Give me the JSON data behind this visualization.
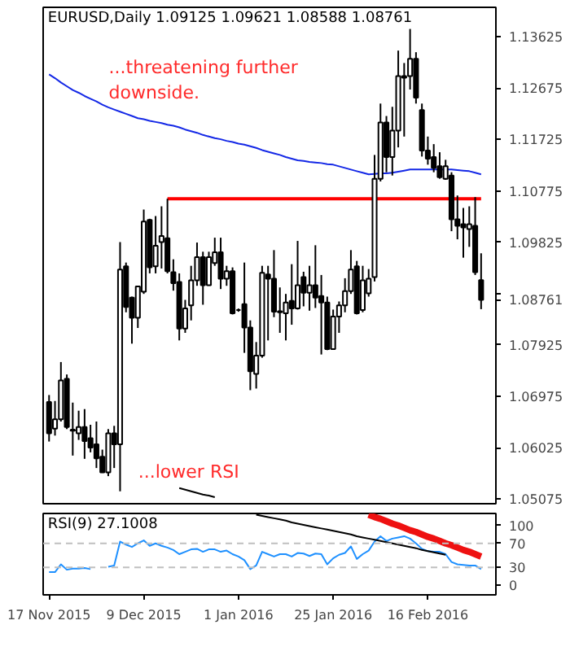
{
  "chart_data": [
    {
      "type": "candlestick",
      "title": "EURUSD,Daily 1.09125 1.09621 1.08588 1.08761",
      "ohlc": [
        [
          1.0687,
          1.07,
          1.0614,
          1.0629
        ],
        [
          1.0638,
          1.0689,
          1.0625,
          1.0655
        ],
        [
          1.0655,
          1.0761,
          1.0651,
          1.0727
        ],
        [
          1.073,
          1.0738,
          1.0637,
          1.0641
        ],
        [
          1.0636,
          1.0686,
          1.0588,
          1.0634
        ],
        [
          1.0629,
          1.0671,
          1.0617,
          1.0641
        ],
        [
          1.0641,
          1.0674,
          1.0582,
          1.0615
        ],
        [
          1.062,
          1.0645,
          1.0594,
          1.0603
        ],
        [
          1.0609,
          1.0651,
          1.0565,
          1.0583
        ],
        [
          1.0586,
          1.0599,
          1.0556,
          1.0557
        ],
        [
          1.0557,
          1.0637,
          1.055,
          1.0629
        ],
        [
          1.0629,
          1.0643,
          1.0565,
          1.0609
        ],
        [
          1.0609,
          1.0983,
          1.0522,
          1.0932
        ],
        [
          1.0938,
          1.0945,
          1.0853,
          1.0863
        ],
        [
          1.088,
          1.0882,
          1.0795,
          1.0843
        ],
        [
          1.0843,
          1.0902,
          1.0824,
          1.0901
        ],
        [
          1.0891,
          1.1043,
          1.0887,
          1.1021
        ],
        [
          1.1024,
          1.1026,
          1.0925,
          1.0936
        ],
        [
          1.0938,
          1.1031,
          1.0925,
          1.0976
        ],
        [
          1.0983,
          1.1049,
          1.0934,
          1.0994
        ],
        [
          1.099,
          1.1063,
          1.0925,
          1.0929
        ],
        [
          1.0927,
          1.0951,
          1.0893,
          1.0907
        ],
        [
          1.0909,
          1.0925,
          1.0801,
          1.0823
        ],
        [
          1.0823,
          1.0876,
          1.0815,
          1.086
        ],
        [
          1.0866,
          1.0939,
          1.0838,
          1.0912
        ],
        [
          1.0912,
          1.0982,
          1.0902,
          1.0955
        ],
        [
          1.0955,
          1.0965,
          1.0867,
          1.0903
        ],
        [
          1.0903,
          1.0965,
          1.0902,
          1.0955
        ],
        [
          1.0944,
          1.0991,
          1.0939,
          1.0964
        ],
        [
          1.0964,
          1.0991,
          1.0896,
          1.0915
        ],
        [
          1.0915,
          1.0939,
          1.0902,
          1.0929
        ],
        [
          1.0929,
          1.0936,
          1.0849,
          1.0851
        ],
        [
          1.0857,
          1.086,
          1.0854,
          1.0857
        ],
        [
          1.0868,
          1.0945,
          1.0778,
          1.0825
        ],
        [
          1.0825,
          1.0838,
          1.0709,
          1.0744
        ],
        [
          1.0739,
          1.0798,
          1.0712,
          1.0773
        ],
        [
          1.0773,
          1.0939,
          1.0769,
          1.0926
        ],
        [
          1.0923,
          1.0939,
          1.0801,
          1.0915
        ],
        [
          1.0915,
          1.0968,
          1.0844,
          1.0854
        ],
        [
          1.0855,
          1.0899,
          1.0815,
          1.0853
        ],
        [
          1.0851,
          1.0887,
          1.0801,
          1.0871
        ],
        [
          1.0874,
          1.0942,
          1.083,
          1.086
        ],
        [
          1.086,
          1.0985,
          1.0858,
          1.0903
        ],
        [
          1.0918,
          1.0928,
          1.0864,
          1.0889
        ],
        [
          1.0889,
          1.0939,
          1.0856,
          1.0903
        ],
        [
          1.0903,
          1.0977,
          1.0861,
          1.088
        ],
        [
          1.0883,
          1.0922,
          1.0775,
          1.0871
        ],
        [
          1.0871,
          1.0882,
          1.0783,
          1.0785
        ],
        [
          1.0785,
          1.0858,
          1.0784,
          1.0845
        ],
        [
          1.0845,
          1.0873,
          1.0815,
          1.0866
        ],
        [
          1.0866,
          1.0916,
          1.0853,
          1.0892
        ],
        [
          1.0892,
          1.0968,
          1.0887,
          1.0932
        ],
        [
          1.0938,
          1.0948,
          1.0849,
          1.0851
        ],
        [
          1.0857,
          1.0939,
          1.0853,
          1.0912
        ],
        [
          1.0888,
          1.0933,
          1.0882,
          1.0915
        ],
        [
          1.0918,
          1.1144,
          1.091,
          1.11
        ],
        [
          1.11,
          1.1239,
          1.1095,
          1.1204
        ],
        [
          1.1204,
          1.1216,
          1.1112,
          1.114
        ],
        [
          1.114,
          1.1233,
          1.1106,
          1.1189
        ],
        [
          1.1189,
          1.1337,
          1.1158,
          1.129
        ],
        [
          1.1287,
          1.1314,
          1.1178,
          1.129
        ],
        [
          1.129,
          1.1377,
          1.1265,
          1.1322
        ],
        [
          1.1322,
          1.1334,
          1.1239,
          1.125
        ],
        [
          1.1227,
          1.1239,
          1.1141,
          1.1152
        ],
        [
          1.1152,
          1.1178,
          1.1126,
          1.1137
        ],
        [
          1.114,
          1.1164,
          1.1112,
          1.112
        ],
        [
          1.1123,
          1.1149,
          1.11,
          1.1103
        ],
        [
          1.11,
          1.1135,
          1.1098,
          1.1123
        ],
        [
          1.1106,
          1.1112,
          1.1003,
          1.1025
        ],
        [
          1.1025,
          1.1069,
          1.0988,
          1.1013
        ],
        [
          1.1016,
          1.1046,
          1.0954,
          1.101
        ],
        [
          1.1007,
          1.1049,
          1.0974,
          1.1016
        ],
        [
          1.1013,
          1.1066,
          1.0922,
          1.0927
        ],
        [
          1.09125,
          1.09621,
          1.08588,
          1.08761
        ]
      ],
      "series": [
        {
          "type": "line",
          "color": "#1428e6",
          "values": [
            1.1293,
            1.1286,
            1.1278,
            1.1271,
            1.1264,
            1.1259,
            1.1253,
            1.1248,
            1.1243,
            1.1237,
            1.1232,
            1.1228,
            1.1224,
            1.122,
            1.1216,
            1.1212,
            1.121,
            1.1207,
            1.1205,
            1.1203,
            1.12,
            1.1198,
            1.1195,
            1.1191,
            1.1188,
            1.1185,
            1.1181,
            1.1178,
            1.1175,
            1.1173,
            1.117,
            1.1168,
            1.1165,
            1.1163,
            1.116,
            1.1157,
            1.1153,
            1.115,
            1.1147,
            1.1144,
            1.114,
            1.1137,
            1.1134,
            1.1133,
            1.1131,
            1.113,
            1.1129,
            1.1127,
            1.1126,
            1.1123,
            1.112,
            1.1117,
            1.1114,
            1.1111,
            1.1108,
            1.1109,
            1.111,
            1.111,
            1.1111,
            1.1113,
            1.1115,
            1.1117,
            1.1117,
            1.1117,
            1.1117,
            1.1117,
            1.1117,
            1.1117,
            1.1117,
            1.1116,
            1.1115,
            1.1114,
            1.1111,
            1.1108
          ]
        },
        {
          "type": "line",
          "color": "#ff0000",
          "values": [
            null,
            null,
            null,
            null,
            null,
            null,
            null,
            null,
            null,
            null,
            null,
            null,
            null,
            null,
            null,
            null,
            null,
            null,
            null,
            null,
            1.1063,
            1.1063,
            1.1063,
            1.1063,
            1.1063,
            1.1063,
            1.1063,
            1.1063,
            1.1063,
            1.1063,
            1.1063,
            1.1063,
            1.1063,
            1.1063,
            1.1063,
            1.1063,
            1.1063,
            1.1063,
            1.1063,
            1.1063,
            1.1063,
            1.1063,
            1.1063,
            1.1063,
            1.1063,
            1.1063,
            1.1063,
            1.1063,
            1.1063,
            1.1063,
            1.1063,
            1.1063,
            1.1063,
            1.1063,
            1.1063,
            1.1063,
            1.1063,
            1.1063,
            1.1063,
            1.1063,
            1.1063,
            1.1063,
            1.1063,
            1.1063,
            1.1063,
            1.1063,
            1.1063,
            1.1063,
            1.1063,
            1.1063,
            1.1063,
            1.1063,
            1.1063,
            1.1063
          ]
        },
        {
          "type": "line",
          "color": "#000000",
          "values": [
            null,
            null,
            null,
            null,
            null,
            null,
            null,
            null,
            null,
            null,
            null,
            null,
            null,
            null,
            null,
            null,
            null,
            null,
            null,
            null,
            null,
            null,
            1.0528,
            1.0525,
            1.0522,
            1.0519,
            1.0516,
            1.0514,
            1.0511,
            null,
            null,
            null,
            null,
            null,
            null,
            null,
            null,
            null,
            null,
            null,
            null,
            null,
            null,
            null,
            null,
            null,
            null,
            null,
            null,
            null,
            null,
            null,
            null,
            null,
            null,
            null,
            null,
            null,
            null,
            null,
            null,
            null,
            null,
            null,
            null,
            null,
            null,
            null,
            null,
            null,
            null,
            null,
            null,
            null
          ]
        }
      ],
      "ylim": [
        1.0499,
        1.1417
      ],
      "yticks": [
        1.05075,
        1.06025,
        1.06975,
        1.07925,
        {
          "value": 1.08761,
          "label": "1.08761"
        },
        {
          "value": 1.08875,
          "label": null
        },
        1.09825,
        1.10775,
        1.11725,
        1.12675,
        1.13625
      ],
      "tick_labels": "y",
      "annotations": [
        "...threatening further\ndownside.",
        "...lower RSI"
      ]
    },
    {
      "type": "line",
      "title": "RSI(9) 27.1008",
      "categories": [
        "17 Nov 2015",
        null,
        null,
        null,
        null,
        null,
        null,
        null,
        null,
        null,
        null,
        null,
        null,
        null,
        null,
        null,
        "9 Dec 2015",
        null,
        null,
        null,
        null,
        null,
        null,
        null,
        null,
        null,
        null,
        null,
        null,
        null,
        null,
        null,
        "1 Jan 2016",
        null,
        null,
        null,
        null,
        null,
        null,
        null,
        null,
        null,
        null,
        null,
        null,
        null,
        null,
        null,
        "25 Jan 2016",
        null,
        null,
        null,
        null,
        null,
        null,
        null,
        null,
        null,
        null,
        null,
        null,
        null,
        null,
        null,
        "16 Feb 2016",
        null,
        null,
        null,
        null,
        null,
        null,
        null,
        null,
        null
      ],
      "series": [
        {
          "type": "line",
          "color": "#1e90ff",
          "values": [
            22,
            22,
            35,
            26,
            28,
            28,
            29,
            27,
            null,
            null,
            31,
            33,
            73,
            68,
            64,
            70,
            75,
            66,
            70,
            66,
            63,
            59,
            52,
            56,
            60,
            61,
            56,
            60,
            60,
            56,
            58,
            52,
            48,
            42,
            27,
            33,
            56,
            52,
            48,
            52,
            52,
            48,
            54,
            53,
            49,
            53,
            52,
            35,
            45,
            51,
            54,
            65,
            44,
            52,
            58,
            73,
            82,
            74,
            78,
            80,
            82,
            78,
            70,
            61,
            57,
            56,
            56,
            52,
            39,
            35,
            34,
            33,
            33,
            27
          ]
        },
        {
          "type": "line",
          "color": "#000000",
          "values": [
            null,
            null,
            null,
            null,
            null,
            null,
            null,
            null,
            null,
            null,
            null,
            null,
            null,
            null,
            null,
            null,
            null,
            null,
            null,
            null,
            null,
            null,
            null,
            null,
            null,
            null,
            null,
            null,
            null,
            null,
            null,
            null,
            null,
            null,
            null,
            118,
            116,
            114,
            112,
            110,
            108,
            105,
            103,
            101,
            99,
            97,
            95,
            93,
            91,
            89,
            87,
            85,
            82,
            80,
            78,
            76,
            74,
            72,
            70,
            68,
            66,
            64,
            62,
            59,
            57,
            55,
            53,
            51,
            null,
            null,
            null,
            null,
            null,
            null
          ]
        },
        {
          "type": "line",
          "color": "#ee1111",
          "values": [
            null,
            null,
            null,
            null,
            null,
            null,
            null,
            null,
            null,
            null,
            null,
            null,
            null,
            null,
            null,
            null,
            null,
            null,
            null,
            null,
            null,
            null,
            null,
            null,
            null,
            null,
            null,
            null,
            null,
            null,
            null,
            null,
            null,
            null,
            null,
            null,
            null,
            null,
            null,
            null,
            null,
            null,
            null,
            null,
            null,
            null,
            null,
            null,
            null,
            null,
            null,
            null,
            null,
            null,
            118,
            114,
            111,
            107,
            103,
            100,
            96,
            92,
            89,
            85,
            81,
            78,
            74,
            70,
            67,
            63,
            59,
            56,
            52,
            48
          ]
        }
      ],
      "ylim": [
        -16,
        120
      ],
      "yticks": [
        0,
        30,
        70,
        100
      ],
      "ref_lines": [
        {
          "axis": "y",
          "value": 70,
          "color": "#c0c0c0",
          "line_style": "dashed"
        },
        {
          "axis": "y",
          "value": 30,
          "color": "#c0c0c0",
          "line_style": "dashed"
        }
      ]
    }
  ]
}
